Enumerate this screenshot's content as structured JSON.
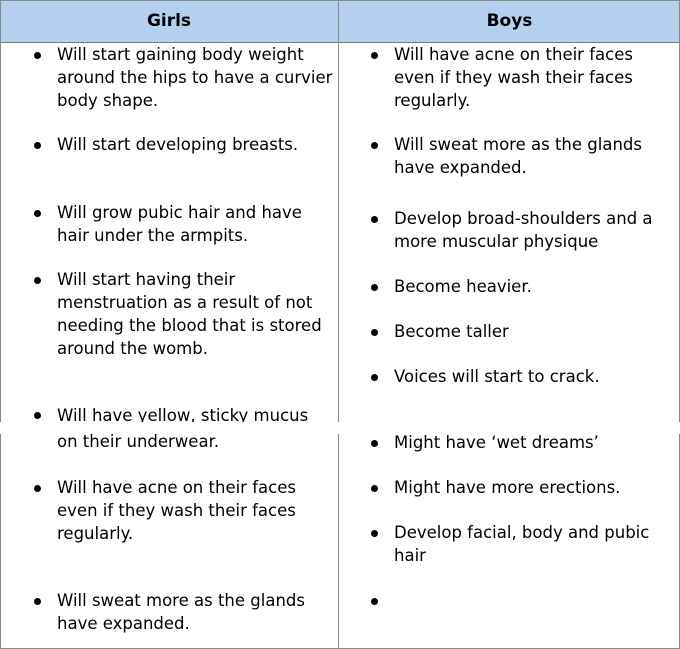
{
  "headers": {
    "girls": "Girls",
    "boys": "Boys"
  },
  "girls": [
    "Will start gaining body weight around the hips to have a curvier body shape.",
    "Will start developing breasts.",
    "Will grow pubic hair and have hair under the armpits.",
    "Will start having their menstruation as a result of not needing the blood that is stored around the womb.",
    "Will have yellow, sticky mucus",
    "on their underwear.",
    "Will have acne on their faces even if they wash their faces regularly.",
    "Will sweat more as the glands have expanded."
  ],
  "boys": [
    "Will have acne on their faces even if they wash their faces regularly.",
    "Will sweat more as the glands have expanded.",
    "Develop broad-shoulders and a more muscular physique",
    "Become heavier.",
    "Become taller",
    "Voices will start to crack.",
    "Might have ‘wet dreams’",
    "Might have more erections.",
    "Develop facial, body and pubic hair",
    ""
  ]
}
